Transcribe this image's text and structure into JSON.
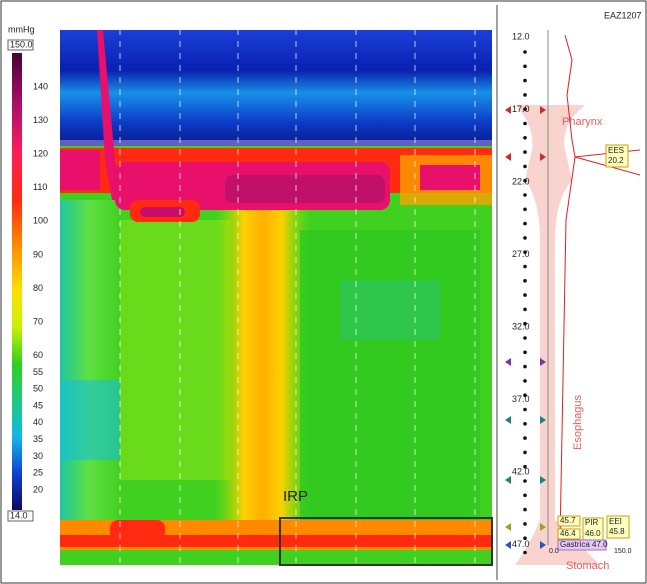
{
  "colorbar": {
    "unit": "mmHg",
    "max_label": "150.0",
    "min_label": "14.0",
    "labels": [
      140,
      130,
      120,
      110,
      100,
      90,
      80,
      70,
      60,
      55,
      50,
      45,
      40,
      35,
      30,
      25,
      20
    ]
  },
  "plot": {
    "annotation": "IRP"
  },
  "side_panel": {
    "id": "EAZ1207",
    "depths": [
      "12.0",
      "17.0",
      "22.0",
      "27.0",
      "32.0",
      "37.0",
      "42.0",
      "47.0"
    ],
    "regions": {
      "pharynx": "Pharynx",
      "esophagus": "Esophagus",
      "stomach": "Stomach"
    },
    "ees": {
      "name": "EES",
      "value": "20.2"
    },
    "eei": {
      "name": "EEI",
      "value": "45.8"
    },
    "markers": {
      "upper": "45.7",
      "lower": "46.4",
      "pir_name": "PIR",
      "pir_value": "46.0",
      "gastric": "Gastrica 47.0"
    },
    "axis_min": "0.0",
    "axis_max": "150.0"
  }
}
